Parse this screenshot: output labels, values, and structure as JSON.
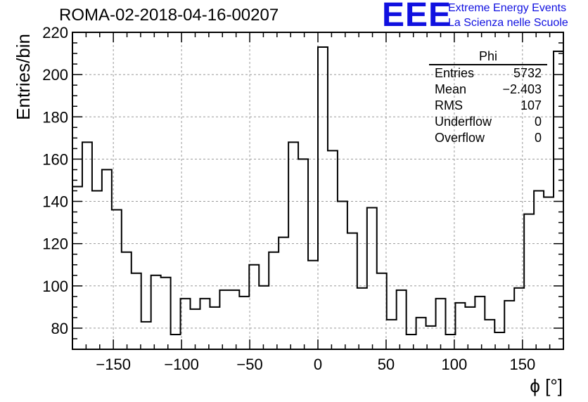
{
  "title": "ROMA-02-2018-04-16-00207",
  "logo": {
    "text": "EEE",
    "line1": "Extreme Energy Events",
    "line2": "La Scienza nelle Scuole",
    "color": "#1010e0"
  },
  "stats": {
    "title": "Phi",
    "rows": [
      {
        "label": "Entries",
        "value": "5732"
      },
      {
        "label": "Mean",
        "value": "−2.403"
      },
      {
        "label": "RMS",
        "value": "107"
      },
      {
        "label": "Underflow",
        "value": "0"
      },
      {
        "label": "Overflow",
        "value": "0"
      }
    ]
  },
  "chart_data": {
    "type": "histogram",
    "xlabel": "ϕ [°]",
    "ylabel": "Entries/bin",
    "xlim": [
      -180,
      180
    ],
    "ylim": [
      70,
      220
    ],
    "xticks": [
      -150,
      -100,
      -50,
      0,
      50,
      100,
      150
    ],
    "yticks": [
      80,
      100,
      120,
      140,
      160,
      180,
      200,
      220
    ],
    "xtick_labels": [
      "−150",
      "−100",
      "−50",
      "0",
      "50",
      "100",
      "150"
    ],
    "ytick_labels": [
      "80",
      "100",
      "120",
      "140",
      "160",
      "180",
      "200",
      "220"
    ],
    "grid": true,
    "bin_edges_start": -180,
    "bin_width": 7.2,
    "values": [
      147,
      168,
      145,
      155,
      136,
      116,
      106,
      83,
      105,
      104,
      77,
      94,
      89,
      94,
      90,
      98,
      98,
      95,
      110,
      100,
      116,
      123,
      168,
      160,
      112,
      213,
      164,
      140,
      125,
      99,
      137,
      106,
      84,
      98,
      77,
      85,
      81,
      94,
      77,
      92,
      90,
      95,
      84,
      78,
      93,
      99,
      134,
      145,
      142,
      211
    ]
  }
}
